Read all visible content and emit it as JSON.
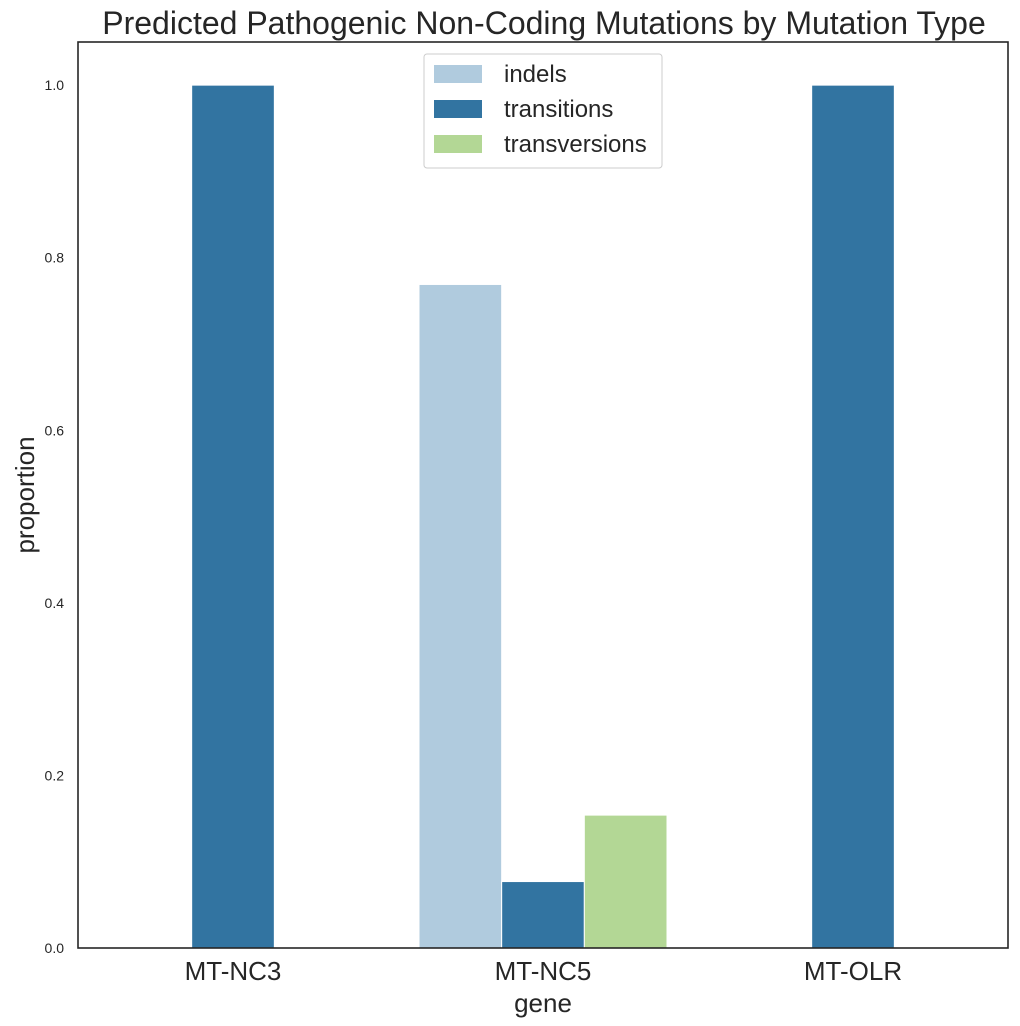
{
  "chart_data": {
    "type": "bar",
    "title": "Predicted Pathogenic Non-Coding Mutations by Mutation Type",
    "xlabel": "gene",
    "ylabel": "proportion",
    "categories": [
      "MT-NC3",
      "MT-NC5",
      "MT-OLR"
    ],
    "series": [
      {
        "name": "indels",
        "color": "#b0cbde",
        "values": [
          0,
          0.769,
          0
        ]
      },
      {
        "name": "transitions",
        "color": "#3274a1",
        "values": [
          1.0,
          0.077,
          1.0
        ]
      },
      {
        "name": "transversions",
        "color": "#b3d795",
        "values": [
          0,
          0.154,
          0
        ]
      }
    ],
    "ylim": [
      0,
      1.05
    ],
    "yticks": [
      "0.0",
      "0.2",
      "0.4",
      "0.6",
      "0.8",
      "1.0"
    ],
    "grid": false,
    "legend_position": "top-center"
  }
}
